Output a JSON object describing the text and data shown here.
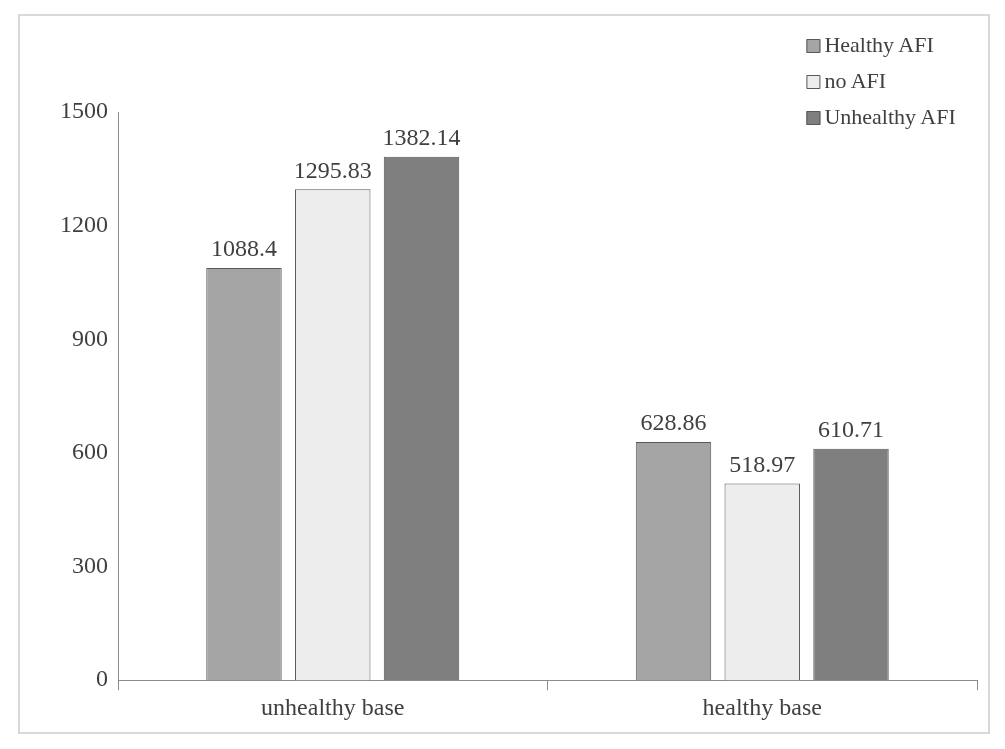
{
  "chart_data": {
    "type": "bar",
    "categories": [
      "unhealthy base",
      "healthy base"
    ],
    "series": [
      {
        "name": "Healthy AFI",
        "color": "#a5a5a5",
        "values": [
          1088.4,
          628.86
        ]
      },
      {
        "name": "no AFI",
        "color": "#ededed",
        "values": [
          1295.83,
          518.97
        ]
      },
      {
        "name": "Unhealthy AFI",
        "color": "#7f7f7f",
        "values": [
          1382.14,
          610.71
        ]
      }
    ],
    "ylim": [
      0,
      1500
    ],
    "yticks": [
      0,
      300,
      600,
      900,
      1200,
      1500
    ],
    "grid": false,
    "legend": "top right",
    "data_labels": true
  }
}
